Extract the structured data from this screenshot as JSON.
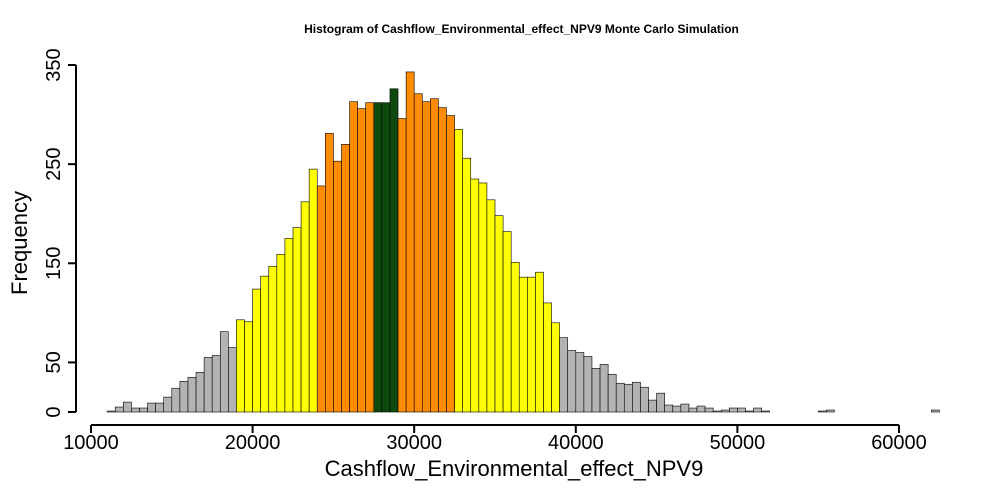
{
  "chart_data": {
    "type": "bar",
    "title": "Histogram of  Cashflow_Environmental_effect_NPV9  Monte Carlo Simulation",
    "xlabel": "Cashflow_Environmental_effect_NPV9",
    "ylabel": "Frequency",
    "xlim": [
      10000,
      62500
    ],
    "ylim": [
      0,
      350
    ],
    "xticks": [
      10000,
      20000,
      30000,
      40000,
      50000,
      60000
    ],
    "xtick_labels": [
      "10000",
      "20000",
      "30000",
      "40000",
      "50000",
      "60000"
    ],
    "yticks": [
      0,
      50,
      150,
      250,
      350
    ],
    "ytick_labels": [
      "0",
      "50",
      "150",
      "250",
      "350"
    ],
    "bin_start": 11000,
    "bin_width": 500,
    "values": [
      1,
      5,
      10,
      4,
      4,
      9,
      9,
      15,
      24,
      31,
      35,
      40,
      55,
      57,
      81,
      65,
      93,
      91,
      124,
      137,
      147,
      159,
      175,
      186,
      212,
      245,
      228,
      281,
      253,
      270,
      313,
      306,
      312,
      312,
      312,
      326,
      296,
      343,
      321,
      313,
      316,
      307,
      299,
      285,
      256,
      235,
      231,
      214,
      198,
      182,
      151,
      136,
      136,
      141,
      110,
      90,
      75,
      62,
      60,
      56,
      44,
      48,
      38,
      29,
      28,
      30,
      25,
      12,
      19,
      7,
      6,
      8,
      4,
      6,
      4,
      1,
      2,
      4,
      4,
      1,
      4,
      1,
      0,
      0,
      0,
      0,
      0,
      0,
      1,
      2,
      0,
      0,
      0,
      0,
      0,
      0,
      0,
      0,
      0,
      0,
      0,
      0,
      2
    ],
    "bin_colors": {
      "outer": "#B3B3B3",
      "mid": "#FFFF00",
      "inner": "#FF8C00",
      "center": "#0E4A0E"
    },
    "bands": [
      {
        "name": "outer",
        "from": 11000,
        "to": 19000
      },
      {
        "name": "mid",
        "from": 19000,
        "to": 24000
      },
      {
        "name": "inner",
        "from": 24000,
        "to": 27500
      },
      {
        "name": "center",
        "from": 27500,
        "to": 29000
      },
      {
        "name": "inner",
        "from": 29000,
        "to": 32500
      },
      {
        "name": "mid",
        "from": 32500,
        "to": 39000
      },
      {
        "name": "outer",
        "from": 39000,
        "to": 62500
      }
    ],
    "grid": false,
    "legend": "none"
  }
}
